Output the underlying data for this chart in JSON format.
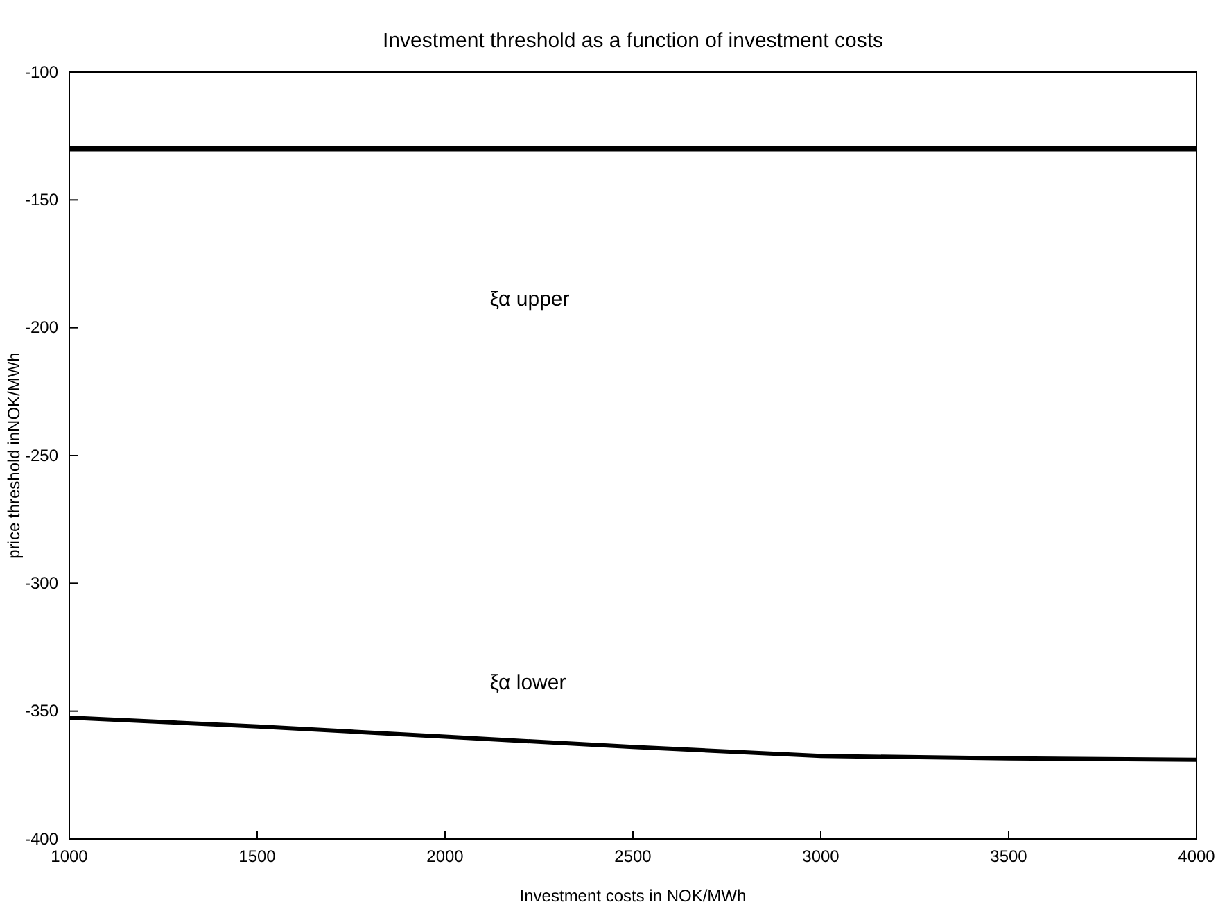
{
  "chart_data": {
    "type": "line",
    "title": "Investment threshold as a function of investment costs",
    "xlabel": "Investment costs in  NOK/MWh",
    "ylabel": "price threshold inNOK/MWh",
    "x": [
      1000,
      1500,
      2000,
      2500,
      3000,
      3500,
      4000
    ],
    "series": [
      {
        "color": "#000000",
        "values": [
          -130,
          -130,
          -130,
          -130,
          -130,
          -130,
          -130
        ]
      },
      {
        "color": "#000000",
        "values": [
          -352.5,
          -356,
          -360,
          -364,
          -367.5,
          -368.5,
          -369
        ]
      }
    ],
    "xlim": [
      1000,
      4000
    ],
    "xticks": [
      1000,
      1500,
      2000,
      2500,
      3000,
      3500,
      4000
    ],
    "ylim": [
      -400,
      -100
    ],
    "yticks": [
      -400,
      -350,
      -300,
      -250,
      -200,
      -150,
      -100
    ],
    "annotations": [
      "ξα upper",
      "ξα lower"
    ]
  }
}
